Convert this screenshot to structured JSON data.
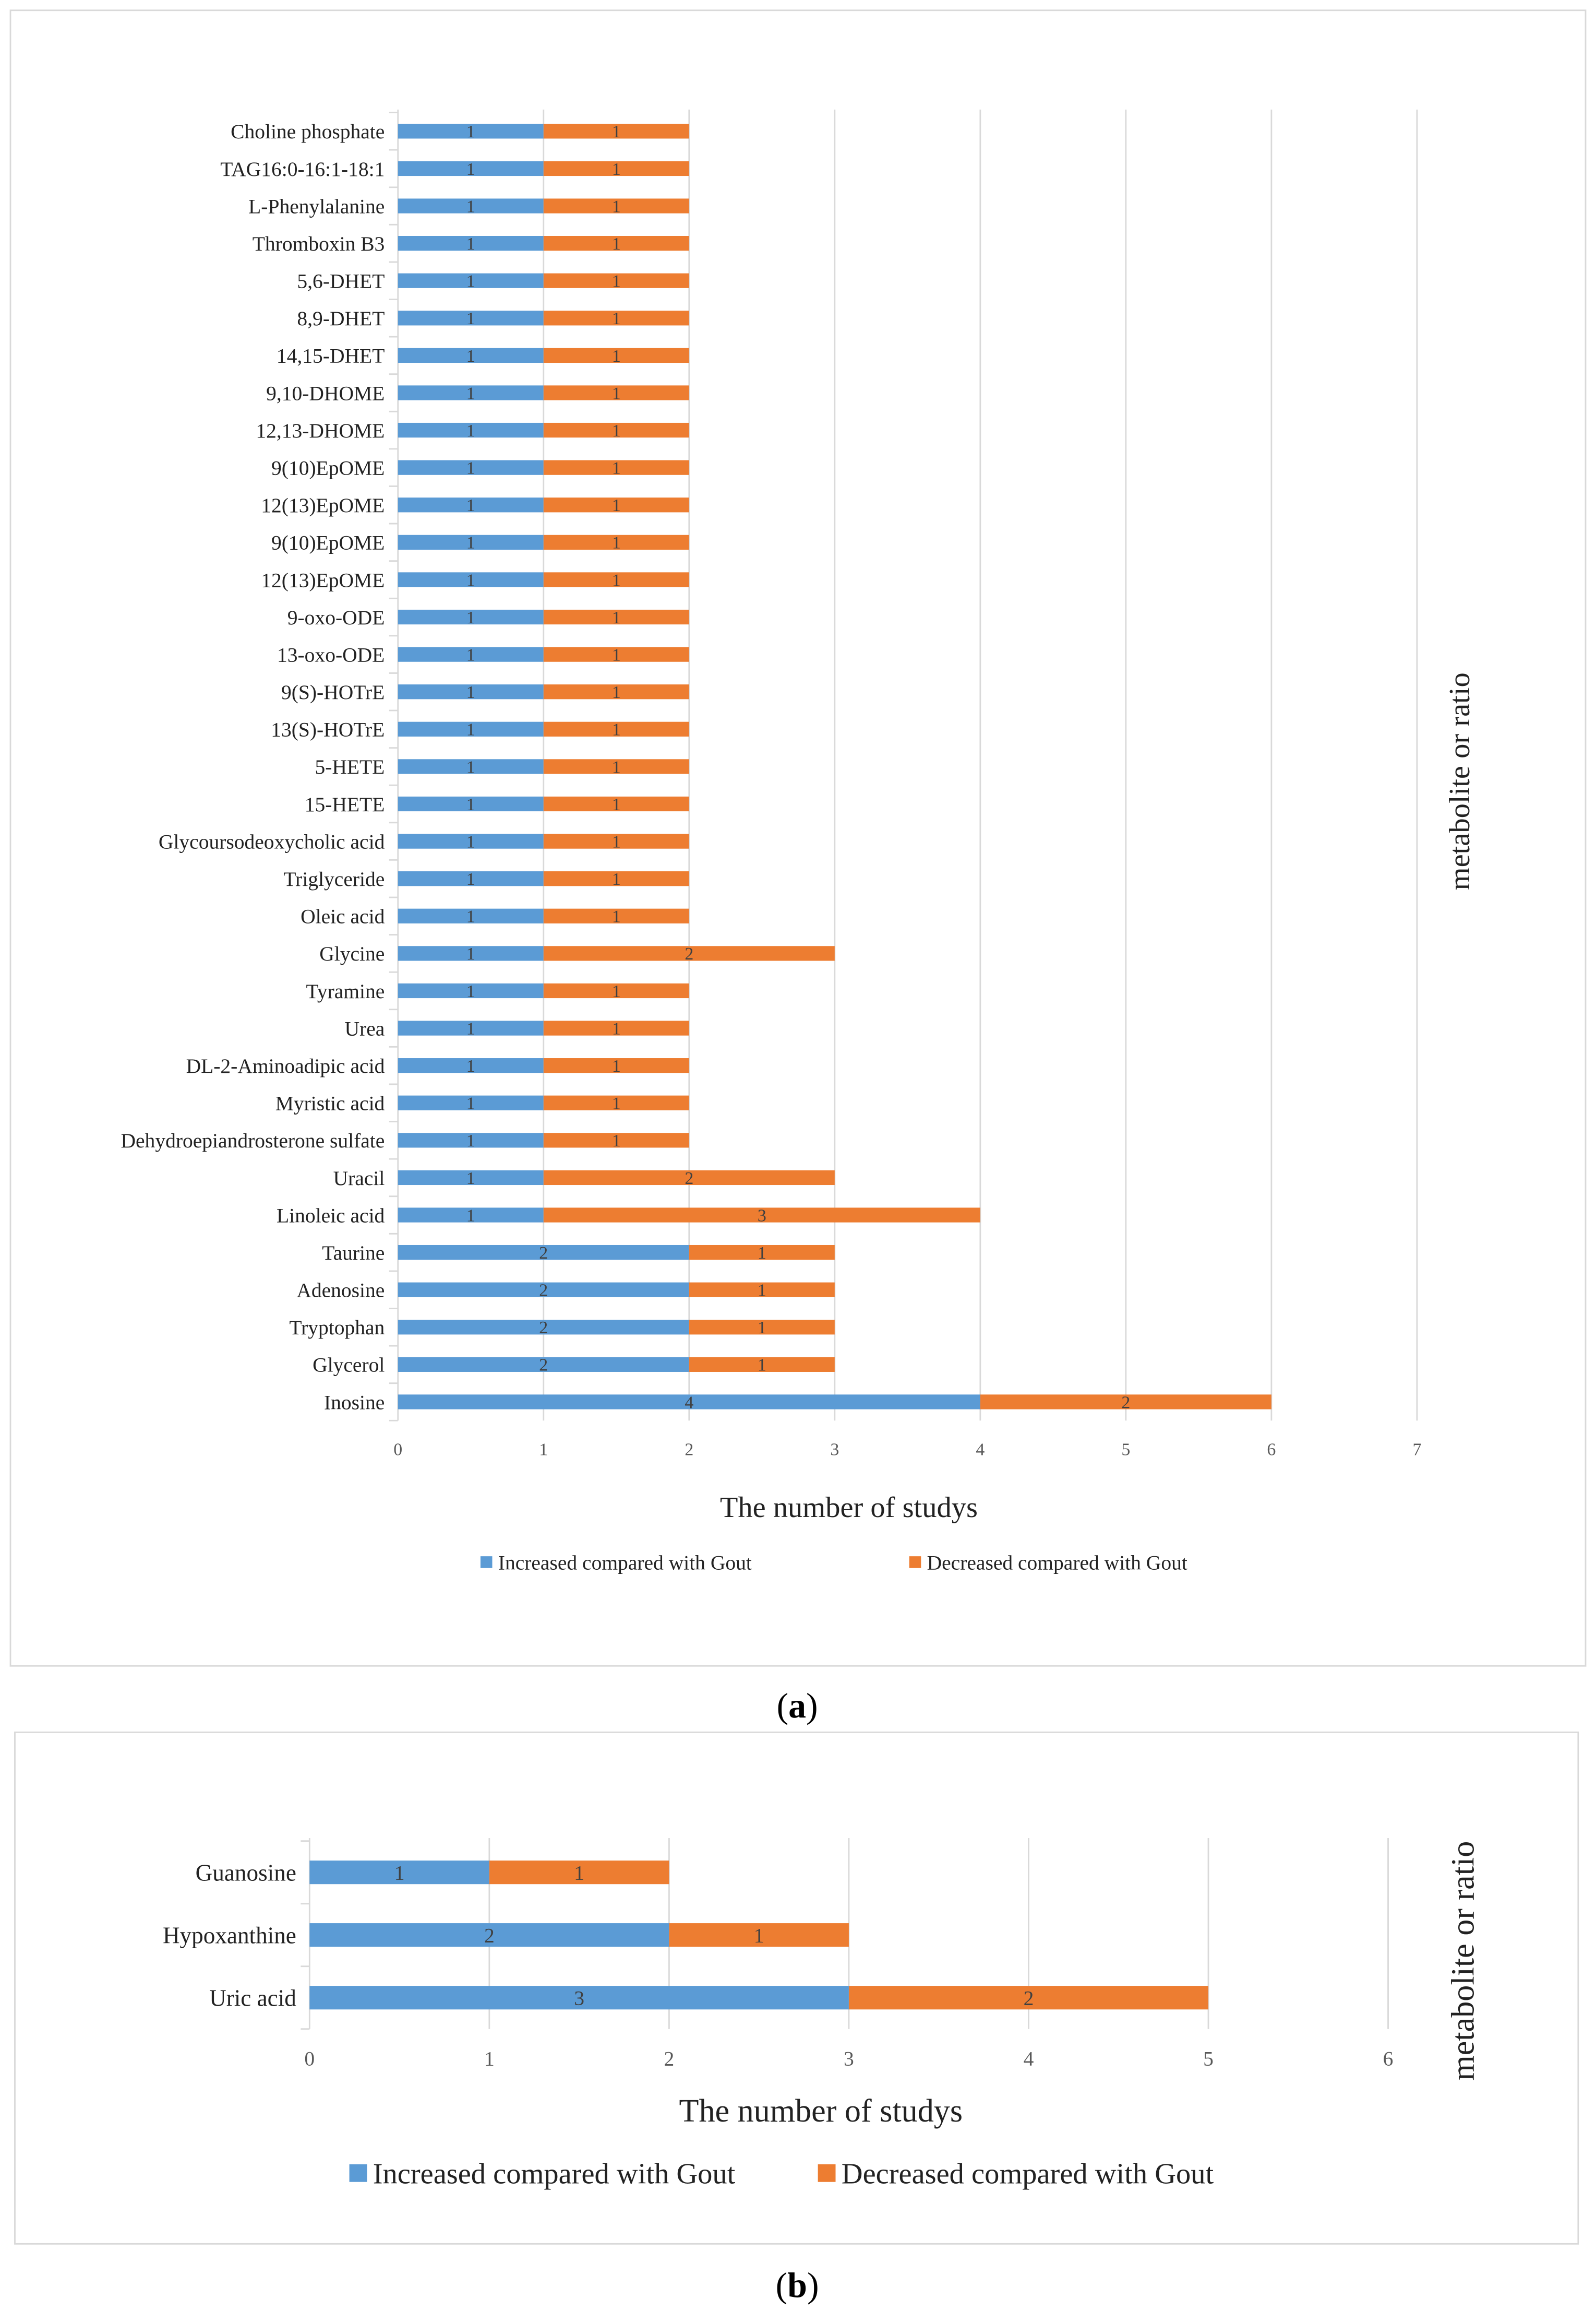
{
  "colors": {
    "increased": "#5B9BD5",
    "decreased": "#ED7D31",
    "grid": "#D9D9D9",
    "text": "#222222",
    "tick": "#595959"
  },
  "chart_data": [
    {
      "type": "bar",
      "orientation": "horizontal-stacked",
      "panel_label": "(a)",
      "panel_letter": "a",
      "xlabel": "The number of studys",
      "ylabel": "metabolite or ratio",
      "xlim": [
        0,
        7
      ],
      "xticks": [
        "0",
        "1",
        "2",
        "3",
        "4",
        "5",
        "6",
        "7"
      ],
      "grid": true,
      "legend_position": "bottom",
      "categories": [
        "Choline phosphate",
        "TAG16:0-16:1-18:1",
        "L-Phenylalanine",
        "Thromboxin B3",
        "5,6-DHET",
        "8,9-DHET",
        "14,15-DHET",
        "9,10-DHOME",
        "12,13-DHOME",
        "9(10)EpOME",
        "12(13)EpOME",
        "9(10)EpOME",
        "12(13)EpOME",
        "9-oxo-ODE",
        "13-oxo-ODE",
        "9(S)-HOTrE",
        "13(S)-HOTrE",
        "5-HETE",
        "15-HETE",
        "Glycoursodeoxycholic acid",
        "Triglyceride",
        "Oleic acid",
        "Glycine",
        "Tyramine",
        "Urea",
        "DL-2-Aminoadipic acid",
        "Myristic acid",
        "Dehydroepiandrosterone sulfate",
        "Uracil",
        "Linoleic acid",
        "Taurine",
        "Adenosine",
        "Tryptophan",
        "Glycerol",
        "Inosine"
      ],
      "series": [
        {
          "name": "Increased compared with Gout",
          "values": [
            1,
            1,
            1,
            1,
            1,
            1,
            1,
            1,
            1,
            1,
            1,
            1,
            1,
            1,
            1,
            1,
            1,
            1,
            1,
            1,
            1,
            1,
            1,
            1,
            1,
            1,
            1,
            1,
            1,
            1,
            2,
            2,
            2,
            2,
            4
          ]
        },
        {
          "name": "Decreased compared with Gout",
          "values": [
            1,
            1,
            1,
            1,
            1,
            1,
            1,
            1,
            1,
            1,
            1,
            1,
            1,
            1,
            1,
            1,
            1,
            1,
            1,
            1,
            1,
            1,
            2,
            1,
            1,
            1,
            1,
            1,
            2,
            3,
            1,
            1,
            1,
            1,
            2
          ]
        }
      ]
    },
    {
      "type": "bar",
      "orientation": "horizontal-stacked",
      "panel_label": "(b)",
      "panel_letter": "b",
      "xlabel": "The number of studys",
      "ylabel": "metabolite or ratio",
      "xlim": [
        0,
        6
      ],
      "xticks": [
        "0",
        "1",
        "2",
        "3",
        "4",
        "5",
        "6"
      ],
      "grid": true,
      "legend_position": "bottom",
      "categories": [
        "Guanosine",
        "Hypoxanthine",
        "Uric acid"
      ],
      "series": [
        {
          "name": "Increased compared with Gout",
          "values": [
            1,
            2,
            3
          ]
        },
        {
          "name": "Decreased compared with Gout",
          "values": [
            1,
            1,
            2
          ]
        }
      ]
    }
  ]
}
